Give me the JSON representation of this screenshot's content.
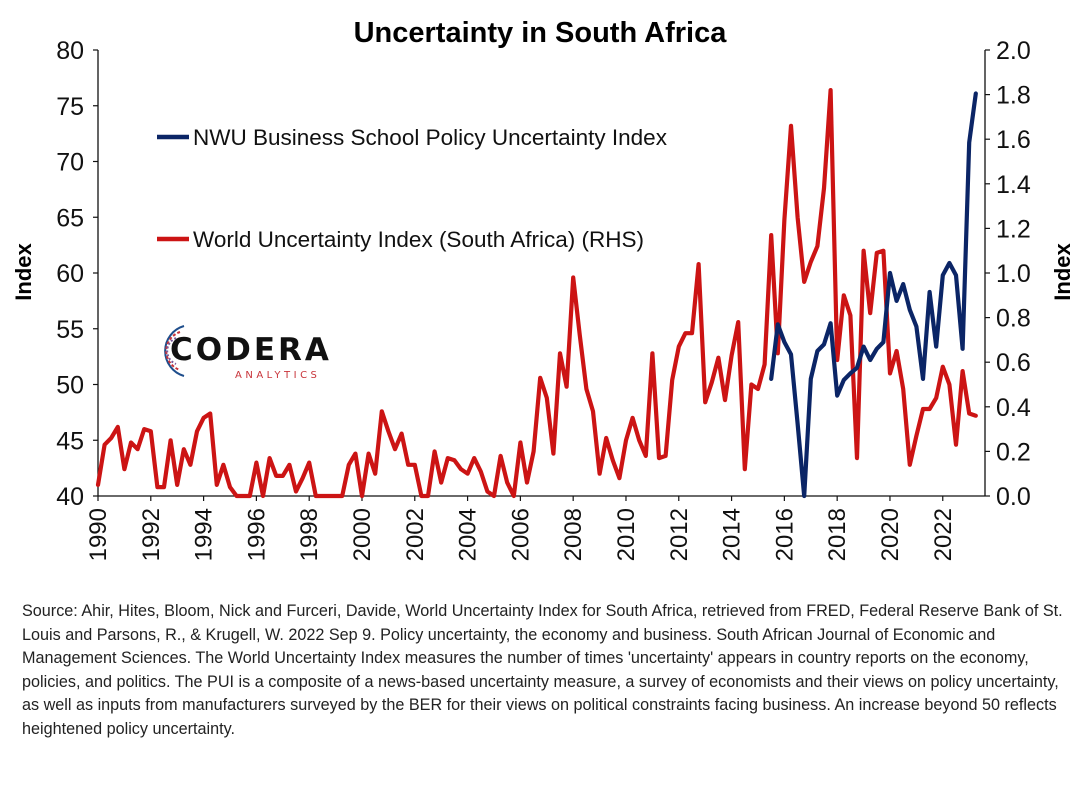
{
  "chart_data": {
    "type": "line",
    "title": "Uncertainty in South Africa",
    "ylabel_left": "Index",
    "ylabel_right": "Index",
    "xlim": [
      1990,
      2023.6
    ],
    "ylim_left": [
      40,
      80
    ],
    "ylim_right": [
      0.0,
      2.0
    ],
    "x_ticks": [
      "1990",
      "1992",
      "1994",
      "1996",
      "1998",
      "2000",
      "2002",
      "2004",
      "2006",
      "2008",
      "2010",
      "2012",
      "2014",
      "2016",
      "2018",
      "2020",
      "2022"
    ],
    "y_ticks_left": [
      "40",
      "45",
      "50",
      "55",
      "60",
      "65",
      "70",
      "75",
      "80"
    ],
    "y_ticks_right": [
      "0.0",
      "0.2",
      "0.4",
      "0.6",
      "0.8",
      "1.0",
      "1.2",
      "1.4",
      "1.6",
      "1.8",
      "2.0"
    ],
    "grid": false,
    "legend_position": "top-left inside",
    "series": [
      {
        "name": "NWU Business School Policy Uncertainty Index",
        "axis": "left",
        "color": "#0b2566",
        "x": [
          2015.5,
          2015.75,
          2016.0,
          2016.25,
          2016.5,
          2016.75,
          2017.0,
          2017.25,
          2017.5,
          2017.75,
          2018.0,
          2018.25,
          2018.5,
          2018.75,
          2019.0,
          2019.25,
          2019.5,
          2019.75,
          2020.0,
          2020.25,
          2020.5,
          2020.75,
          2021.0,
          2021.25,
          2021.5,
          2021.75,
          2022.0,
          2022.25,
          2022.5,
          2022.75,
          2023.0,
          2023.25
        ],
        "y": [
          50.5,
          55.4,
          53.8,
          52.7,
          46.5,
          40.0,
          50.5,
          53.0,
          53.6,
          55.5,
          49.0,
          50.4,
          51.0,
          51.5,
          53.4,
          52.2,
          53.2,
          53.8,
          60.0,
          57.5,
          59.0,
          56.7,
          55.2,
          50.5,
          58.3,
          53.4,
          59.8,
          60.9,
          59.8,
          53.2,
          71.7,
          76.1
        ]
      },
      {
        "name": "World Uncertainty Index (South Africa) (RHS)",
        "axis": "right",
        "color": "#cc1414",
        "x": [
          1990.0,
          1990.25,
          1990.5,
          1990.75,
          1991.0,
          1991.25,
          1991.5,
          1991.75,
          1992.0,
          1992.25,
          1992.5,
          1992.75,
          1993.0,
          1993.25,
          1993.5,
          1993.75,
          1994.0,
          1994.25,
          1994.5,
          1994.75,
          1995.0,
          1995.25,
          1995.5,
          1995.75,
          1996.0,
          1996.25,
          1996.5,
          1996.75,
          1997.0,
          1997.25,
          1997.5,
          1997.75,
          1998.0,
          1998.25,
          1998.5,
          1998.75,
          1999.0,
          1999.25,
          1999.5,
          1999.75,
          2000.0,
          2000.25,
          2000.5,
          2000.75,
          2001.0,
          2001.25,
          2001.5,
          2001.75,
          2002.0,
          2002.25,
          2002.5,
          2002.75,
          2003.0,
          2003.25,
          2003.5,
          2003.75,
          2004.0,
          2004.25,
          2004.5,
          2004.75,
          2005.0,
          2005.25,
          2005.5,
          2005.75,
          2006.0,
          2006.25,
          2006.5,
          2006.75,
          2007.0,
          2007.25,
          2007.5,
          2007.75,
          2008.0,
          2008.25,
          2008.5,
          2008.75,
          2009.0,
          2009.25,
          2009.5,
          2009.75,
          2010.0,
          2010.25,
          2010.5,
          2010.75,
          2011.0,
          2011.25,
          2011.5,
          2011.75,
          2012.0,
          2012.25,
          2012.5,
          2012.75,
          2013.0,
          2013.25,
          2013.5,
          2013.75,
          2014.0,
          2014.25,
          2014.5,
          2014.75,
          2015.0,
          2015.25,
          2015.5,
          2015.75,
          2016.0,
          2016.25,
          2016.5,
          2016.75,
          2017.0,
          2017.25,
          2017.5,
          2017.75,
          2018.0,
          2018.25,
          2018.5,
          2018.75,
          2019.0,
          2019.25,
          2019.5,
          2019.75,
          2020.0,
          2020.25,
          2020.5,
          2020.75,
          2021.0,
          2021.25,
          2021.5,
          2021.75,
          2022.0,
          2022.25,
          2022.5,
          2022.75,
          2023.0,
          2023.25
        ],
        "y": [
          0.05,
          0.23,
          0.26,
          0.31,
          0.12,
          0.24,
          0.21,
          0.3,
          0.29,
          0.04,
          0.04,
          0.25,
          0.05,
          0.21,
          0.14,
          0.29,
          0.35,
          0.37,
          0.05,
          0.14,
          0.04,
          0.0,
          0.0,
          0.0,
          0.15,
          0.0,
          0.17,
          0.09,
          0.09,
          0.14,
          0.02,
          0.08,
          0.15,
          0.0,
          0.0,
          0.0,
          0.0,
          0.0,
          0.14,
          0.19,
          0.0,
          0.19,
          0.1,
          0.38,
          0.29,
          0.21,
          0.28,
          0.14,
          0.14,
          0.0,
          0.0,
          0.2,
          0.06,
          0.17,
          0.16,
          0.12,
          0.1,
          0.17,
          0.11,
          0.02,
          0.0,
          0.18,
          0.06,
          0.0,
          0.24,
          0.06,
          0.2,
          0.53,
          0.44,
          0.19,
          0.64,
          0.49,
          0.98,
          0.72,
          0.48,
          0.38,
          0.1,
          0.26,
          0.16,
          0.08,
          0.25,
          0.35,
          0.25,
          0.18,
          0.64,
          0.17,
          0.18,
          0.52,
          0.67,
          0.73,
          0.73,
          1.04,
          0.42,
          0.51,
          0.62,
          0.43,
          0.63,
          0.78,
          0.12,
          0.5,
          0.48,
          0.59,
          1.17,
          0.64,
          1.24,
          1.66,
          1.25,
          0.96,
          1.05,
          1.12,
          1.38,
          1.82,
          0.61,
          0.9,
          0.81,
          0.17,
          1.1,
          0.82,
          1.09,
          1.1,
          0.55,
          0.65,
          0.48,
          0.14,
          0.27,
          0.39,
          0.39,
          0.44,
          0.58,
          0.5,
          0.23,
          0.56,
          0.37,
          0.36
        ]
      }
    ]
  },
  "logo": {
    "name": "CODERA",
    "subtitle": "ANALYTICS"
  },
  "source_note": "Source: Ahir, Hites, Bloom, Nick and Furceri, Davide, World Uncertainty Index for South Africa, retrieved from FRED, Federal Reserve Bank of St. Louis and Parsons, R., & Krugell, W. 2022 Sep 9. Policy uncertainty, the economy and business. South African Journal of Economic and Management Sciences. The World Uncertainty Index measures the number of times 'uncertainty' appears in country reports on the economy, policies, and politics. The PUI is a composite of a news-based uncertainty measure, a survey of economists and their views on policy uncertainty, as well as inputs from manufacturers surveyed by the BER for their views on political constraints facing business. An increase beyond 50 reflects heightened policy uncertainty."
}
